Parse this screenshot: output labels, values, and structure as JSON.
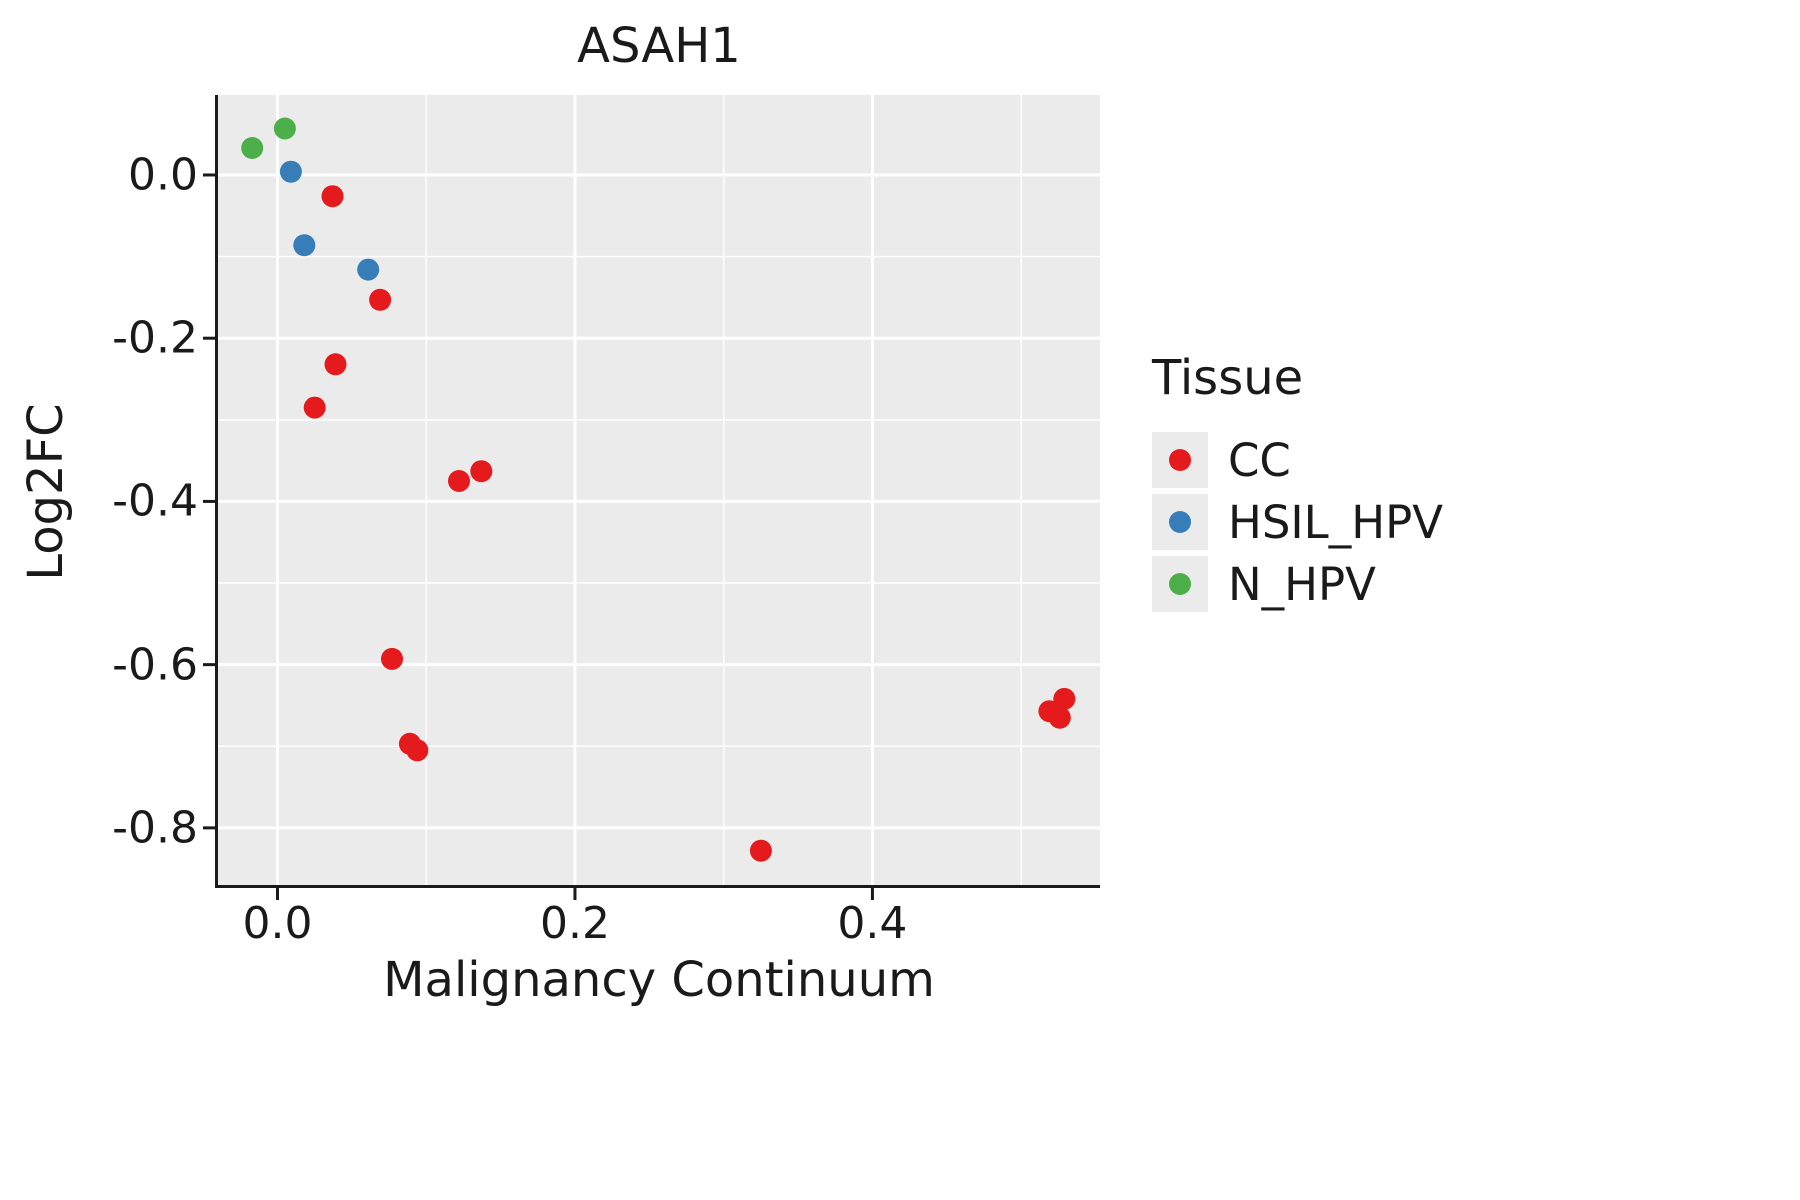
{
  "figure": {
    "background": "#ffffff",
    "panel_background": "#ebebeb",
    "grid_color": "#ffffff",
    "axis_color": "#1a1a1a",
    "text_color": "#1a1a1a"
  },
  "legend": {
    "title": "Tissue",
    "items": [
      {
        "label": "CC",
        "color": "#e41a1c"
      },
      {
        "label": "HSIL_HPV",
        "color": "#377eb8"
      },
      {
        "label": "N_HPV",
        "color": "#4daf4a"
      }
    ]
  },
  "chart_data": {
    "type": "scatter",
    "title": "ASAH1",
    "xlabel": "Malignancy Continuum",
    "ylabel": "Log2FC",
    "xlim": [
      -0.04,
      0.553
    ],
    "ylim": [
      -0.87,
      0.098
    ],
    "x_ticks": [
      0.0,
      0.2,
      0.4
    ],
    "x_tick_labels": [
      "0.0",
      "0.2",
      "0.4"
    ],
    "x_minor_ticks": [
      0.1,
      0.3,
      0.5
    ],
    "y_ticks": [
      0.0,
      -0.2,
      -0.4,
      -0.6,
      -0.8
    ],
    "y_tick_labels": [
      "0.0",
      "-0.2",
      "-0.4",
      "-0.6",
      "-0.8"
    ],
    "y_minor_ticks": [
      -0.1,
      -0.3,
      -0.5,
      -0.7
    ],
    "grid": true,
    "legend_position": "right",
    "point_radius": 11,
    "series": [
      {
        "name": "CC",
        "color": "#e41a1c",
        "points": [
          [
            0.037,
            -0.026
          ],
          [
            0.069,
            -0.153
          ],
          [
            0.039,
            -0.232
          ],
          [
            0.025,
            -0.285
          ],
          [
            0.122,
            -0.375
          ],
          [
            0.137,
            -0.363
          ],
          [
            0.077,
            -0.593
          ],
          [
            0.089,
            -0.697
          ],
          [
            0.094,
            -0.705
          ],
          [
            0.325,
            -0.828
          ],
          [
            0.519,
            -0.657
          ],
          [
            0.526,
            -0.665
          ],
          [
            0.529,
            -0.642
          ]
        ]
      },
      {
        "name": "HSIL_HPV",
        "color": "#377eb8",
        "points": [
          [
            0.009,
            0.004
          ],
          [
            0.018,
            -0.086
          ],
          [
            0.061,
            -0.116
          ]
        ]
      },
      {
        "name": "N_HPV",
        "color": "#4daf4a",
        "points": [
          [
            -0.017,
            0.033
          ],
          [
            0.005,
            0.057
          ]
        ]
      }
    ]
  }
}
